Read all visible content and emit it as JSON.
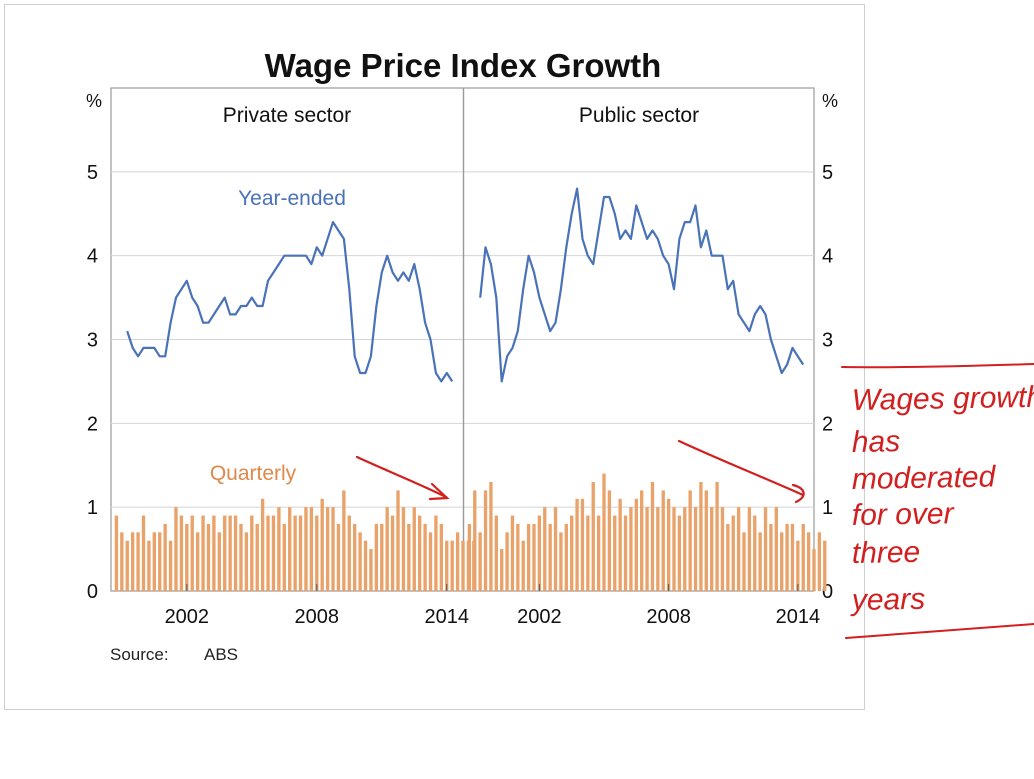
{
  "chart_data": {
    "type": "line",
    "title": "Wage Price Index Growth",
    "y_unit_left": "%",
    "y_unit_right": "%",
    "ylim": [
      0,
      6
    ],
    "yticks": [
      0,
      1,
      2,
      3,
      4,
      5
    ],
    "xticks": [
      "2002",
      "2008",
      "2014"
    ],
    "x_range": [
      1998.5,
      2014.75
    ],
    "grid": true,
    "source_label": "Source:",
    "source_value": "ABS",
    "panels": [
      {
        "name": "Private sector",
        "line_label": "Year-ended",
        "bar_label": "Quarterly",
        "line_color": "#4a72b8",
        "bar_color": "#e9a36a",
        "year_ended": {
          "x": [
            1999.25,
            1999.5,
            1999.75,
            2000,
            2000.25,
            2000.5,
            2000.75,
            2001,
            2001.25,
            2001.5,
            2001.75,
            2002,
            2002.25,
            2002.5,
            2002.75,
            2003,
            2003.25,
            2003.5,
            2003.75,
            2004,
            2004.25,
            2004.5,
            2004.75,
            2005,
            2005.25,
            2005.5,
            2005.75,
            2006,
            2006.25,
            2006.5,
            2006.75,
            2007,
            2007.25,
            2007.5,
            2007.75,
            2008,
            2008.25,
            2008.5,
            2008.75,
            2009,
            2009.25,
            2009.5,
            2009.75,
            2010,
            2010.25,
            2010.5,
            2010.75,
            2011,
            2011.25,
            2011.5,
            2011.75,
            2012,
            2012.25,
            2012.5,
            2012.75,
            2013,
            2013.25,
            2013.5,
            2013.75,
            2014,
            2014.25
          ],
          "y": [
            3.1,
            2.9,
            2.8,
            2.9,
            2.9,
            2.9,
            2.8,
            2.8,
            3.2,
            3.5,
            3.6,
            3.7,
            3.5,
            3.4,
            3.2,
            3.2,
            3.3,
            3.4,
            3.5,
            3.3,
            3.3,
            3.4,
            3.4,
            3.5,
            3.4,
            3.4,
            3.7,
            3.8,
            3.9,
            4.0,
            4.0,
            4.0,
            4.0,
            4.0,
            3.9,
            4.1,
            4.0,
            4.2,
            4.4,
            4.3,
            4.2,
            3.6,
            2.8,
            2.6,
            2.6,
            2.8,
            3.4,
            3.8,
            4.0,
            3.8,
            3.7,
            3.8,
            3.7,
            3.9,
            3.6,
            3.2,
            3.0,
            2.6,
            2.5,
            2.6,
            2.5
          ]
        },
        "quarterly": {
          "start": 1998.75,
          "step": 0.25,
          "values": [
            0.9,
            0.7,
            0.6,
            0.7,
            0.7,
            0.9,
            0.6,
            0.7,
            0.7,
            0.8,
            0.6,
            1.0,
            0.9,
            0.8,
            0.9,
            0.7,
            0.9,
            0.8,
            0.9,
            0.7,
            0.9,
            0.9,
            0.9,
            0.8,
            0.7,
            0.9,
            0.8,
            1.1,
            0.9,
            0.9,
            1.0,
            0.8,
            1.0,
            0.9,
            0.9,
            1.0,
            1.0,
            0.9,
            1.1,
            1.0,
            1.0,
            0.8,
            1.2,
            0.9,
            0.8,
            0.7,
            0.6,
            0.5,
            0.8,
            0.8,
            1.0,
            0.9,
            1.2,
            1.0,
            0.8,
            1.0,
            0.9,
            0.8,
            0.7,
            0.9,
            0.8,
            0.6,
            0.6,
            0.7,
            0.6,
            0.6,
            0.6
          ]
        },
        "annotation": "arrow-down"
      },
      {
        "name": "Public sector",
        "line_color": "#4a72b8",
        "bar_color": "#e9a36a",
        "year_ended": {
          "x": [
            1999.25,
            1999.5,
            1999.75,
            2000,
            2000.25,
            2000.5,
            2000.75,
            2001,
            2001.25,
            2001.5,
            2001.75,
            2002,
            2002.25,
            2002.5,
            2002.75,
            2003,
            2003.25,
            2003.5,
            2003.75,
            2004,
            2004.25,
            2004.5,
            2004.75,
            2005,
            2005.25,
            2005.5,
            2005.75,
            2006,
            2006.25,
            2006.5,
            2006.75,
            2007,
            2007.25,
            2007.5,
            2007.75,
            2008,
            2008.25,
            2008.5,
            2008.75,
            2009,
            2009.25,
            2009.5,
            2009.75,
            2010,
            2010.25,
            2010.5,
            2010.75,
            2011,
            2011.25,
            2011.5,
            2011.75,
            2012,
            2012.25,
            2012.5,
            2012.75,
            2013,
            2013.25,
            2013.5,
            2013.75,
            2014,
            2014.25
          ],
          "y": [
            3.5,
            4.1,
            3.9,
            3.5,
            2.5,
            2.8,
            2.9,
            3.1,
            3.6,
            4.0,
            3.8,
            3.5,
            3.3,
            3.1,
            3.2,
            3.6,
            4.1,
            4.5,
            4.8,
            4.2,
            4.0,
            3.9,
            4.3,
            4.7,
            4.7,
            4.5,
            4.2,
            4.3,
            4.2,
            4.6,
            4.4,
            4.2,
            4.3,
            4.2,
            4.0,
            3.9,
            3.6,
            4.2,
            4.4,
            4.4,
            4.6,
            4.1,
            4.3,
            4.0,
            4.0,
            4.0,
            3.6,
            3.7,
            3.3,
            3.2,
            3.1,
            3.3,
            3.4,
            3.3,
            3.0,
            2.8,
            2.6,
            2.7,
            2.9,
            2.8,
            2.7
          ]
        },
        "quarterly": {
          "start": 1998.75,
          "step": 0.25,
          "values": [
            0.8,
            1.2,
            0.7,
            1.2,
            1.3,
            0.9,
            0.5,
            0.7,
            0.9,
            0.8,
            0.6,
            0.8,
            0.8,
            0.9,
            1.0,
            0.8,
            1.0,
            0.7,
            0.8,
            0.9,
            1.1,
            1.1,
            0.9,
            1.3,
            0.9,
            1.4,
            1.2,
            0.9,
            1.1,
            0.9,
            1.0,
            1.1,
            1.2,
            1.0,
            1.3,
            1.0,
            1.2,
            1.1,
            1.0,
            0.9,
            1.0,
            1.2,
            1.0,
            1.3,
            1.2,
            1.0,
            1.3,
            1.0,
            0.8,
            0.9,
            1.0,
            0.7,
            1.0,
            0.9,
            0.7,
            1.0,
            0.8,
            1.0,
            0.7,
            0.8,
            0.8,
            0.6,
            0.8,
            0.7,
            0.5,
            0.7,
            0.6
          ]
        },
        "annotation": "arrow-down"
      }
    ]
  },
  "handwritten_note": [
    "Wages growth",
    "has",
    "moderated",
    "for over",
    "three",
    "years"
  ],
  "ink_color": "#d21f1f"
}
